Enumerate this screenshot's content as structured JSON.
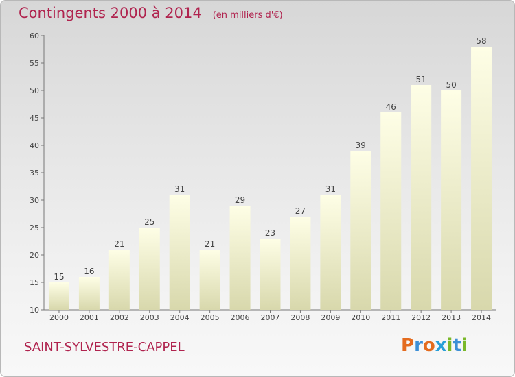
{
  "header": {
    "title": "Contingents 2000 à 2014",
    "unit": "(en milliers d'€)"
  },
  "footer": {
    "commune": "SAINT-SYLVESTRE-CAPPEL",
    "logo_text": "Proxiti"
  },
  "colors": {
    "title": "#b0234e",
    "bar_top": "#fefee6",
    "bar_bottom": "#d8d8ac",
    "logo": [
      "#e46b1e",
      "#3d8fd6",
      "#e46b1e",
      "#2a9fd8",
      "#7ab829",
      "#3d8fd6",
      "#7ab829"
    ]
  },
  "chart_data": {
    "type": "bar",
    "categories": [
      "2000",
      "2001",
      "2002",
      "2003",
      "2004",
      "2005",
      "2006",
      "2007",
      "2008",
      "2009",
      "2010",
      "2011",
      "2012",
      "2013",
      "2014"
    ],
    "values": [
      15,
      16,
      21,
      25,
      31,
      21,
      29,
      23,
      27,
      31,
      39,
      46,
      51,
      50,
      58
    ],
    "ylim": [
      10,
      60
    ],
    "yticks": [
      10,
      15,
      20,
      25,
      30,
      35,
      40,
      45,
      50,
      55,
      60
    ],
    "grid": false
  }
}
